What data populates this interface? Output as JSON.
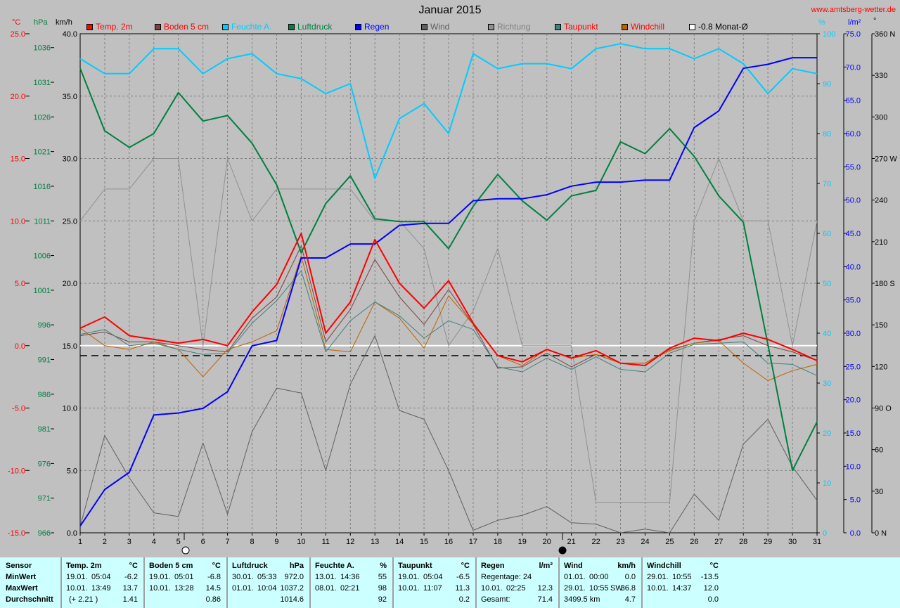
{
  "title": "Januar 2015",
  "site": "www.amtsberg-wetter.de",
  "units": {
    "temp": "°C",
    "hpa": "hPa",
    "kmh": "km/h",
    "pct": "%",
    "lm2": "l/m²",
    "deg": "°"
  },
  "legend": [
    {
      "label": "Temp. 2m",
      "color": "#ff0000",
      "text_color": "#ff0000"
    },
    {
      "label": "Boden 5 cm",
      "color": "#804040",
      "text_color": "#ff0000"
    },
    {
      "label": "Feuchte A.",
      "color": "#00ccff",
      "text_color": "#00ccff"
    },
    {
      "label": "Luftdruck",
      "color": "#008040",
      "text_color": "#008040"
    },
    {
      "label": "Regen",
      "color": "#0000ff",
      "text_color": "#0000ff"
    },
    {
      "label": "Wind",
      "color": "#606060",
      "text_color": "#606060"
    },
    {
      "label": "Richtung",
      "color": "#909090",
      "text_color": "#808080"
    },
    {
      "label": "Taupunkt",
      "color": "#408080",
      "text_color": "#ff0000"
    },
    {
      "label": "Windchill",
      "color": "#c06000",
      "text_color": "#ff0000"
    },
    {
      "label": "-0.8 Monat-Ø",
      "color": "#ffffff",
      "text_color": "#000000"
    }
  ],
  "chart_data": {
    "type": "line",
    "title": "Januar 2015",
    "x": [
      1,
      2,
      3,
      4,
      5,
      6,
      7,
      8,
      9,
      10,
      11,
      12,
      13,
      14,
      15,
      16,
      17,
      18,
      19,
      20,
      21,
      22,
      23,
      24,
      25,
      26,
      27,
      28,
      29,
      30,
      31
    ],
    "axes": {
      "temp": {
        "label": "°C",
        "range": [
          -15,
          25
        ],
        "ticks": [
          "25.0",
          "20.0",
          "15.0",
          "10.0",
          "5.0",
          "0.0",
          "-5.0",
          "-10.0",
          "-15.0"
        ]
      },
      "pressure": {
        "label": "hPa",
        "range": [
          966,
          1038
        ],
        "ticks": [
          "1036",
          "1031",
          "1026",
          "1021",
          "1016",
          "1011",
          "1006",
          "1001",
          "996",
          "991",
          "986",
          "981",
          "976",
          "971",
          "966"
        ]
      },
      "wind": {
        "label": "km/h",
        "range": [
          0,
          40
        ],
        "ticks": [
          "40.0",
          "35.0",
          "30.0",
          "25.0",
          "20.0",
          "15.0",
          "10.0",
          "5.0",
          "0.0"
        ]
      },
      "humidity": {
        "label": "%",
        "range": [
          0,
          100
        ],
        "ticks": [
          "100",
          "90",
          "80",
          "70",
          "60",
          "50",
          "40",
          "30",
          "20",
          "10",
          "0"
        ]
      },
      "rain": {
        "label": "l/m²",
        "range": [
          0,
          75
        ],
        "ticks": [
          "75.0",
          "70.0",
          "65.0",
          "60.0",
          "55.0",
          "50.0",
          "45.0",
          "40.0",
          "35.0",
          "30.0",
          "25.0",
          "20.0",
          "15.0",
          "10.0",
          "5.0",
          "0.0"
        ]
      },
      "direction": {
        "label": "°",
        "range": [
          0,
          360
        ],
        "ticks": [
          "360 N",
          "330",
          "300",
          "270 W",
          "240",
          "210",
          "180 S",
          "150",
          "120",
          "90 O",
          "60",
          "30",
          "0 N"
        ]
      }
    },
    "month_avg_temp": -0.8,
    "series": [
      {
        "name": "Temp. 2m",
        "axis": "temp",
        "color": "#ff0000",
        "width": 2,
        "values": [
          1.4,
          2.3,
          0.8,
          0.5,
          0.2,
          0.5,
          0.0,
          2.7,
          4.9,
          9.0,
          1.0,
          3.5,
          8.5,
          5.0,
          3.0,
          5.2,
          1.8,
          -0.8,
          -1.3,
          -0.3,
          -1.0,
          -0.4,
          -1.4,
          -1.6,
          -0.2,
          0.6,
          0.4,
          1.0,
          0.5,
          -0.3,
          -1.2
        ]
      },
      {
        "name": "Boden 5 cm",
        "axis": "temp",
        "color": "#804040",
        "width": 1,
        "values": [
          0.8,
          1.1,
          0.3,
          0.3,
          0.0,
          -0.3,
          -0.5,
          2.2,
          3.9,
          8.0,
          0.3,
          2.9,
          6.9,
          3.9,
          1.7,
          4.5,
          1.7,
          -1.8,
          -1.7,
          -0.6,
          -1.7,
          -0.7,
          -1.4,
          -1.4,
          -0.3,
          0.2,
          0.5,
          0.8,
          0.0,
          -0.5,
          -1.2
        ]
      },
      {
        "name": "Windchill",
        "axis": "temp",
        "color": "#c06000",
        "width": 1,
        "values": [
          1.4,
          0.0,
          -0.3,
          0.3,
          -0.3,
          -2.5,
          -0.3,
          0.3,
          1.2,
          7.2,
          -0.3,
          -0.5,
          3.5,
          2.2,
          -0.2,
          4.0,
          1.7,
          -0.8,
          -1.6,
          -0.3,
          -1.0,
          -0.7,
          -1.4,
          -1.4,
          -0.4,
          0.2,
          0.4,
          -1.4,
          -2.8,
          -2.0,
          -1.5
        ]
      },
      {
        "name": "Taupunkt",
        "axis": "temp",
        "color": "#408080",
        "width": 1,
        "values": [
          0.9,
          1.3,
          0.0,
          0.2,
          -0.3,
          -0.7,
          -0.6,
          1.8,
          3.6,
          6.0,
          -0.5,
          2.0,
          3.5,
          2.4,
          0.6,
          2.0,
          1.3,
          -1.7,
          -2.1,
          -1.0,
          -1.9,
          -0.9,
          -1.9,
          -2.1,
          -0.6,
          0.1,
          0.2,
          0.3,
          -1.4,
          -1.5,
          -2.4
        ]
      },
      {
        "name": "Feuchte A.",
        "axis": "humidity",
        "color": "#00ccff",
        "width": 2,
        "values": [
          95,
          92,
          92,
          97,
          97,
          92,
          95,
          96,
          92,
          91,
          88,
          90,
          71,
          83,
          86,
          80,
          96,
          93,
          94,
          94,
          93,
          97,
          98,
          97,
          97,
          95,
          97,
          94,
          88,
          93,
          92
        ]
      },
      {
        "name": "Luftdruck",
        "axis": "pressure",
        "color": "#008040",
        "width": 2,
        "values": [
          1033,
          1024,
          1021.6,
          1023.6,
          1029.5,
          1025.4,
          1026.2,
          1022.2,
          1016.2,
          1006.4,
          1013.5,
          1017.5,
          1011.3,
          1010.9,
          1010.9,
          1007,
          1013.1,
          1017.7,
          1013.9,
          1011.1,
          1014.6,
          1015.4,
          1022.4,
          1020.7,
          1024.3,
          1020.3,
          1014.6,
          1010.8,
          993.2,
          975,
          982
        ]
      },
      {
        "name": "Regen",
        "axis": "rain",
        "color": "#0000ff",
        "width": 2,
        "values": [
          1.0,
          6.5,
          9.1,
          17.7,
          18.0,
          18.7,
          21.2,
          28.1,
          28.9,
          41.3,
          41.3,
          43.4,
          43.4,
          46.2,
          46.5,
          46.5,
          49.9,
          50.2,
          50.2,
          50.8,
          52.1,
          52.7,
          52.7,
          53.0,
          53.0,
          60.9,
          63.4,
          69.8,
          70.4,
          71.4,
          71.4
        ]
      },
      {
        "name": "Wind",
        "axis": "wind",
        "color": "#606060",
        "width": 1,
        "values": [
          0.5,
          7.8,
          4.4,
          1.6,
          1.3,
          7.2,
          1.5,
          8.1,
          11.6,
          11.2,
          5.0,
          11.9,
          15.8,
          9.8,
          9.1,
          5.0,
          0.2,
          1.0,
          1.4,
          2.1,
          0.8,
          0.7,
          0.0,
          0.3,
          0.0,
          3.1,
          1.0,
          7.1,
          9.1,
          5.3,
          2.6
        ]
      },
      {
        "name": "Richtung",
        "axis": "direction",
        "color": "#909090",
        "width": 1,
        "values": [
          225,
          248,
          248,
          270,
          270,
          135,
          270,
          225,
          248,
          248,
          248,
          248,
          225,
          225,
          205,
          135,
          160,
          205,
          135,
          135,
          135,
          22,
          22,
          22,
          22,
          225,
          270,
          225,
          225,
          135,
          225
        ]
      }
    ]
  },
  "stats": {
    "sensor": {
      "title": "Sensor",
      "rows": [
        "MinWert",
        "MaxWert",
        "Durchschnitt"
      ]
    },
    "temp": {
      "title": "Temp. 2m",
      "unit": "°C",
      "min_date": "19.01.",
      "min_time": "05:04",
      "min_val": "-6.2",
      "max_date": "10.01.",
      "max_time": "13:49",
      "max_val": "13.7",
      "avg_extra": "(+ 2.21 )",
      "avg_val": "1.41"
    },
    "boden": {
      "title": "Boden 5 cm",
      "unit": "°C",
      "min_date": "19.01.",
      "min_time": "05:01",
      "min_val": "-6.8",
      "max_date": "10.01.",
      "max_time": "13:28",
      "max_val": "14.5",
      "avg_val": "0.86"
    },
    "luft": {
      "title": "Luftdruck",
      "unit": "hPa",
      "min_date": "30.01.",
      "min_time": "05:33",
      "min_val": "972.0",
      "max_date": "01.01.",
      "max_time": "10:04",
      "max_val": "1037.2",
      "avg_val": "1014.6"
    },
    "feuchte": {
      "title": "Feuchte A.",
      "unit": "%",
      "min_date": "13.01.",
      "min_time": "14:36",
      "min_val": "55",
      "max_date": "08.01.",
      "max_time": "02:21",
      "max_val": "98",
      "avg_val": "92"
    },
    "tau": {
      "title": "Taupunkt",
      "unit": "°C",
      "min_date": "19.01.",
      "min_time": "05:04",
      "min_val": "-6.5",
      "max_date": "10.01.",
      "max_time": "11:07",
      "max_val": "11.3",
      "avg_val": "0.2"
    },
    "regen": {
      "title": "Regen",
      "unit": "l/m²",
      "row1": "Regentage: 24",
      "max_date": "10.01.",
      "max_time": "02:25",
      "max_val": "12.3",
      "avg_label": "Gesamt:",
      "avg_val": "71.4"
    },
    "wind": {
      "title": "Wind",
      "unit": "km/h",
      "min_date": "01.01.",
      "min_time": "00:00",
      "min_val": "0.0",
      "max_date": "29.01.",
      "max_time": "10:55",
      "max_extra": "SW",
      "max_val": "36.8",
      "avg_extra": "3499.5 km",
      "avg_val": "4.7"
    },
    "chill": {
      "title": "Windchill",
      "unit": "°C",
      "min_date": "29.01.",
      "min_time": "10:55",
      "min_val": "-13.5",
      "max_date": "10.01.",
      "max_time": "14:37",
      "max_val": "12.0",
      "avg_val": "0.0"
    }
  }
}
